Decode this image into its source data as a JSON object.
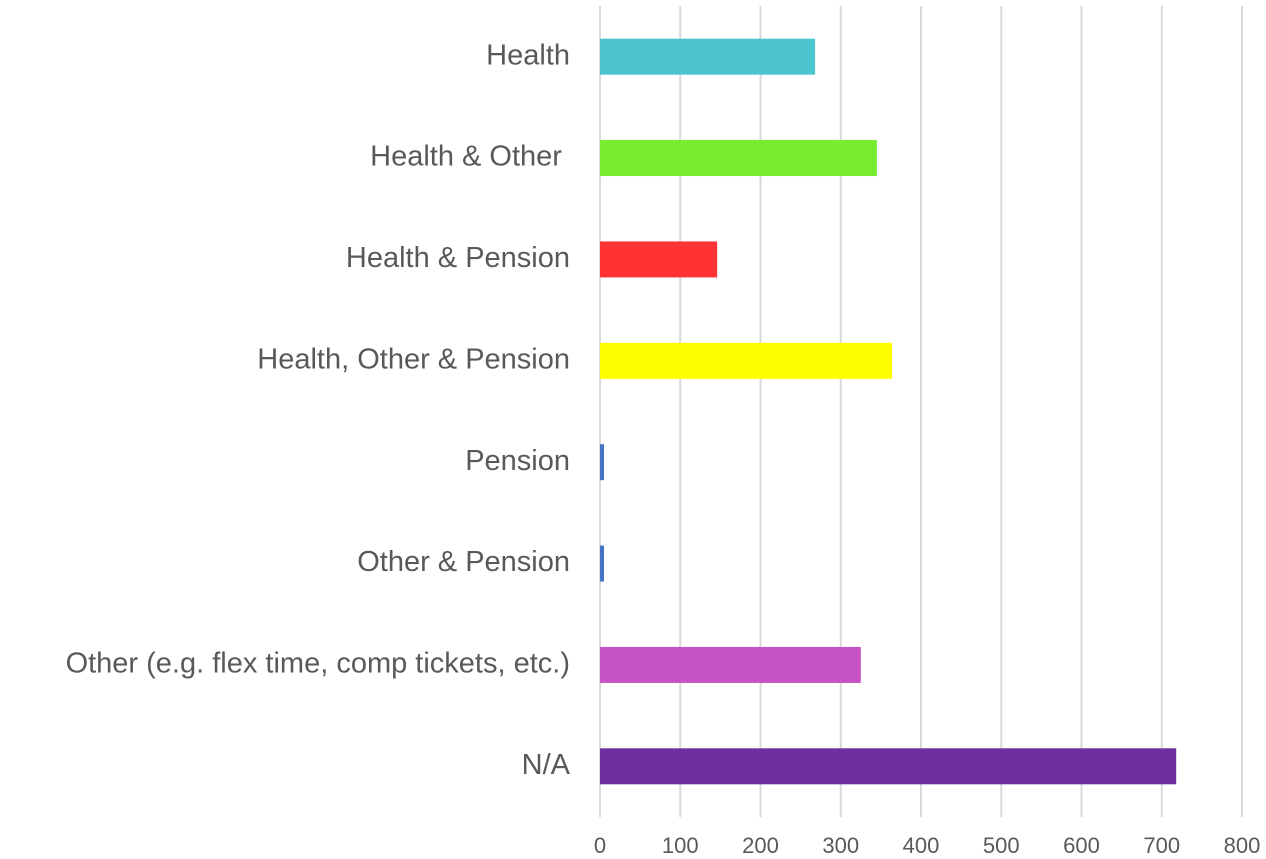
{
  "chart_data": {
    "type": "barh",
    "categories": [
      "Health",
      "Health & Other ",
      "Health & Pension",
      "Health, Other & Pension",
      "Pension",
      "Other & Pension",
      "Other (e.g. flex time, comp tickets, etc.)",
      "N/A"
    ],
    "values": [
      268,
      345,
      146,
      364,
      5,
      5,
      325,
      718
    ],
    "colors": [
      "#4dc5d0",
      "#76eb2f",
      "#ff3333",
      "#ffff00",
      "#4472c4",
      "#4472c4",
      "#c653c4",
      "#6f2f9f"
    ],
    "xlim": [
      0,
      800
    ],
    "xticks": [
      0,
      100,
      200,
      300,
      400,
      500,
      600,
      700,
      800
    ],
    "grid": true
  }
}
